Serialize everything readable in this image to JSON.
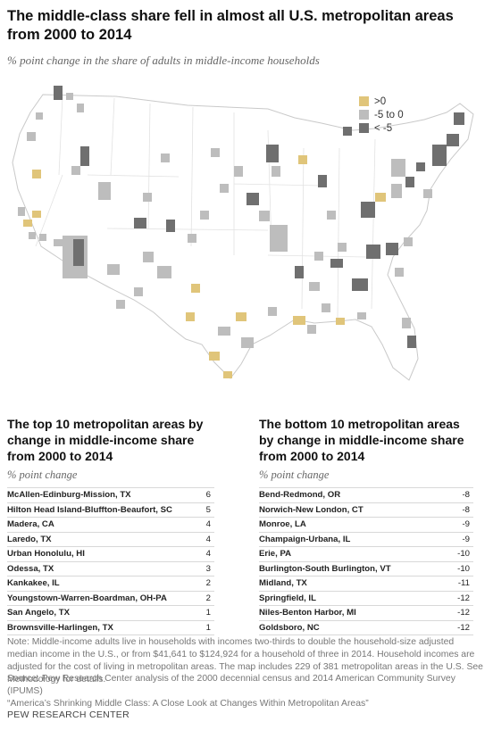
{
  "title": "The middle-class share fell in almost all U.S. metropolitan areas from 2000 to 2014",
  "subtitle": "% point change in the share of adults in middle-income households",
  "colors": {
    "positive": "#e0c57a",
    "slight": "#bdbdbd",
    "large": "#6f6f6f",
    "state_line": "#ffffff",
    "land": "#ffffff"
  },
  "legend": [
    {
      "label": ">0",
      "color": "#e0c57a"
    },
    {
      "label": "-5 to 0",
      "color": "#bdbdbd"
    },
    {
      "label": "< -5",
      "color": "#6f6f6f"
    }
  ],
  "chart_data": {
    "type": "table",
    "title": "The middle-class share fell in almost all U.S. metropolitan areas from 2000 to 2014",
    "tables": [
      {
        "title": "The top 10 metropolitan areas by change in middle-income share from 2000 to 2014",
        "subtitle": "% point change",
        "rows": [
          {
            "name": "McAllen-Edinburg-Mission, TX",
            "value": "6"
          },
          {
            "name": "Hilton Head Island-Bluffton-Beaufort, SC",
            "value": "5"
          },
          {
            "name": "Madera, CA",
            "value": "4"
          },
          {
            "name": "Laredo, TX",
            "value": "4"
          },
          {
            "name": "Urban Honolulu, HI",
            "value": "4"
          },
          {
            "name": "Odessa, TX",
            "value": "3"
          },
          {
            "name": "Kankakee, IL",
            "value": "2"
          },
          {
            "name": "Youngstown-Warren-Boardman, OH-PA",
            "value": "2"
          },
          {
            "name": "San Angelo, TX",
            "value": "1"
          },
          {
            "name": "Brownsville-Harlingen, TX",
            "value": "1"
          }
        ]
      },
      {
        "title": "The bottom 10 metropolitan areas by change in middle-income share from 2000 to 2014",
        "subtitle": "% point change",
        "rows": [
          {
            "name": "Bend-Redmond, OR",
            "value": "-8"
          },
          {
            "name": "Norwich-New London, CT",
            "value": "-8"
          },
          {
            "name": "Monroe, LA",
            "value": "-9"
          },
          {
            "name": "Champaign-Urbana, IL",
            "value": "-9"
          },
          {
            "name": "Erie, PA",
            "value": "-10"
          },
          {
            "name": "Burlington-South Burlington, VT",
            "value": "-10"
          },
          {
            "name": "Midland, TX",
            "value": "-11"
          },
          {
            "name": "Springfield, IL",
            "value": "-12"
          },
          {
            "name": "Niles-Benton Harbor, MI",
            "value": "-12"
          },
          {
            "name": "Goldsboro, NC",
            "value": "-12"
          }
        ]
      }
    ]
  },
  "tables_display": {
    "top_title": "The top 10 metropolitan areas by change in middle-income share from 2000 to 2014",
    "bottom_title": "The bottom 10 metropolitan areas by change in middle-income share from 2000 to 2014",
    "unit_label": "% point change"
  },
  "note": "Note: Middle-income adults live in households with incomes two-thirds to double the household-size adjusted median income in the U.S., or from $41,641 to $124,924 for a household of three in 2014. Household incomes are adjusted for the cost of living in metropolitan areas. The map includes 229 of 381 metropolitan areas in the U.S. See Methodology for details.",
  "source": "Source: Pew Research Center analysis of the 2000 decennial census and 2014 American Community Survey (IPUMS)",
  "report": "“America’s Shrinking Middle Class: A Close Look at Changes Within Metropolitan Areas”",
  "brand": "PEW RESEARCH CENTER"
}
